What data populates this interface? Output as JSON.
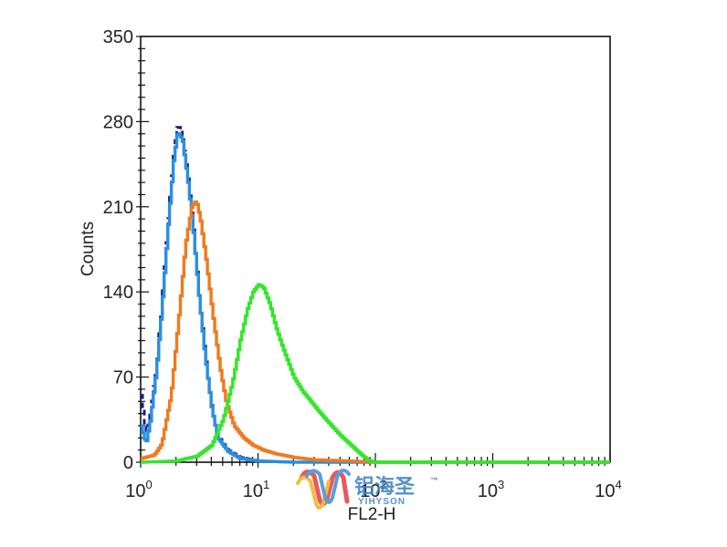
{
  "chart_data": {
    "type": "line",
    "subtype": "flow-cytometry-histogram",
    "title": "",
    "xlabel": "FL2-H",
    "ylabel": "Counts",
    "x_scale": "log",
    "xlim": [
      1,
      10000
    ],
    "ylim": [
      0,
      350
    ],
    "x_ticks": [
      {
        "value": 1,
        "base": "10",
        "exp": "0"
      },
      {
        "value": 10,
        "base": "10",
        "exp": "1"
      },
      {
        "value": 100,
        "base": "10",
        "exp": "2"
      },
      {
        "value": 1000,
        "base": "10",
        "exp": "3"
      },
      {
        "value": 10000,
        "base": "10",
        "exp": "4"
      }
    ],
    "y_ticks": [
      "0",
      "70",
      "140",
      "210",
      "280",
      "350"
    ],
    "grid": false,
    "series": [
      {
        "color": "#1a1a8c",
        "dashed": true,
        "points": [
          [
            1.0,
            55
          ],
          [
            1.1,
            20
          ],
          [
            1.2,
            40
          ],
          [
            1.35,
            80
          ],
          [
            1.5,
            130
          ],
          [
            1.7,
            200
          ],
          [
            1.9,
            255
          ],
          [
            2.05,
            278
          ],
          [
            2.25,
            268
          ],
          [
            2.5,
            235
          ],
          [
            2.8,
            190
          ],
          [
            3.1,
            140
          ],
          [
            3.5,
            90
          ],
          [
            4.0,
            45
          ],
          [
            4.5,
            22
          ],
          [
            5.5,
            10
          ],
          [
            7,
            4
          ],
          [
            10,
            1
          ],
          [
            20,
            0
          ],
          [
            10000,
            0
          ]
        ]
      },
      {
        "color": "#2a8fe0",
        "dashed": false,
        "points": [
          [
            1.0,
            30
          ],
          [
            1.1,
            15
          ],
          [
            1.2,
            35
          ],
          [
            1.35,
            75
          ],
          [
            1.5,
            125
          ],
          [
            1.7,
            195
          ],
          [
            1.9,
            250
          ],
          [
            2.05,
            272
          ],
          [
            2.25,
            265
          ],
          [
            2.5,
            232
          ],
          [
            2.8,
            188
          ],
          [
            3.1,
            138
          ],
          [
            3.5,
            88
          ],
          [
            4.0,
            44
          ],
          [
            4.5,
            20
          ],
          [
            5.5,
            9
          ],
          [
            7,
            3
          ],
          [
            10,
            1
          ],
          [
            20,
            0
          ],
          [
            10000,
            0
          ]
        ]
      },
      {
        "color": "#f07a1e",
        "dashed": false,
        "points": [
          [
            1.0,
            3
          ],
          [
            1.3,
            6
          ],
          [
            1.5,
            15
          ],
          [
            1.8,
            55
          ],
          [
            2.1,
            120
          ],
          [
            2.4,
            180
          ],
          [
            2.7,
            210
          ],
          [
            2.95,
            215
          ],
          [
            3.2,
            200
          ],
          [
            3.6,
            165
          ],
          [
            4.1,
            120
          ],
          [
            4.7,
            78
          ],
          [
            5.3,
            50
          ],
          [
            6.2,
            30
          ],
          [
            7.5,
            20
          ],
          [
            9,
            14
          ],
          [
            11,
            10
          ],
          [
            14,
            7
          ],
          [
            20,
            4
          ],
          [
            30,
            2
          ],
          [
            60,
            1
          ],
          [
            100,
            0
          ],
          [
            10000,
            0
          ]
        ]
      },
      {
        "color": "#33e62a",
        "dashed": false,
        "points": [
          [
            1.0,
            0
          ],
          [
            2.0,
            1
          ],
          [
            3.0,
            5
          ],
          [
            4.0,
            14
          ],
          [
            5.0,
            35
          ],
          [
            6.0,
            65
          ],
          [
            7.0,
            100
          ],
          [
            8.0,
            125
          ],
          [
            9.0,
            140
          ],
          [
            10.0,
            146
          ],
          [
            11.0,
            144
          ],
          [
            12.5,
            130
          ],
          [
            14,
            112
          ],
          [
            16,
            95
          ],
          [
            18,
            82
          ],
          [
            20,
            70
          ],
          [
            24,
            58
          ],
          [
            28,
            50
          ],
          [
            34,
            40
          ],
          [
            42,
            30
          ],
          [
            50,
            22
          ],
          [
            60,
            15
          ],
          [
            70,
            9
          ],
          [
            80,
            4
          ],
          [
            90,
            1
          ],
          [
            100,
            0
          ],
          [
            10000,
            0
          ]
        ]
      }
    ]
  },
  "watermark": {
    "text_cn": "铝海圣",
    "tm": "™",
    "text_en": "YIHYSON"
  }
}
